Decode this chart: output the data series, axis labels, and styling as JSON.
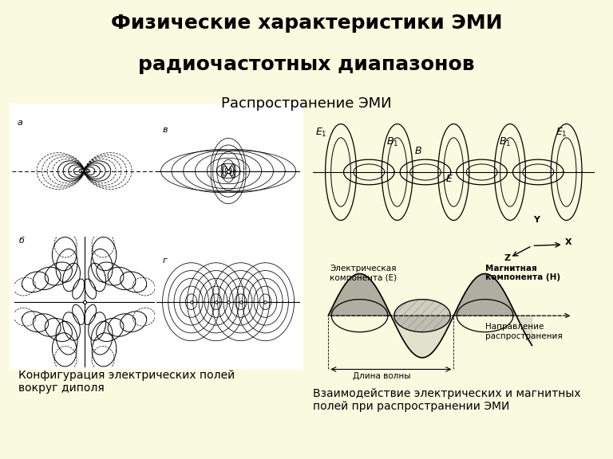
{
  "background_color": "#FAFAE0",
  "title_line1": "Физические характеристики ЭМИ",
  "title_line2": "радиочастотных диапазонов",
  "subtitle": "Распространение ЭМИ",
  "caption_left": "Конфигурация электрических полей\nвокруг диполя",
  "caption_right": "Взаимодействие электрических и магнитных\nполей при распространении ЭМИ",
  "title_fontsize": 18,
  "subtitle_fontsize": 13,
  "caption_fontsize": 10,
  "fig_width": 7.68,
  "fig_height": 5.76
}
